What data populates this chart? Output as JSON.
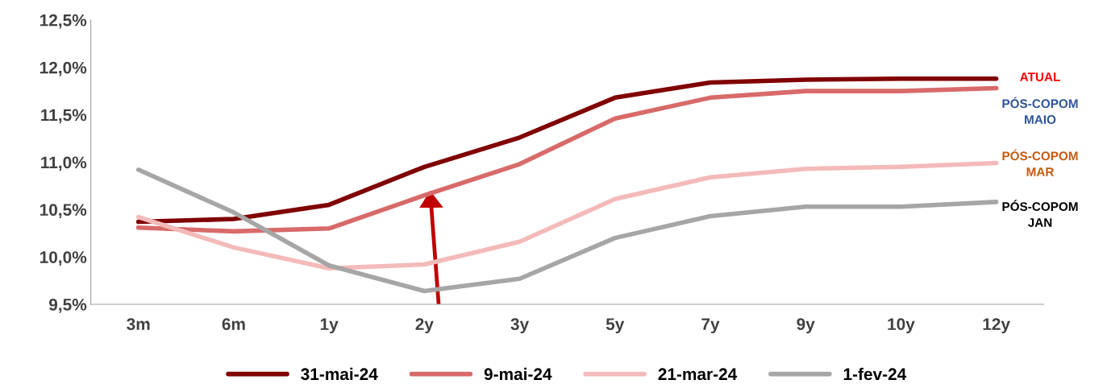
{
  "chart_data": {
    "type": "line",
    "categories": [
      "3m",
      "6m",
      "1y",
      "2y",
      "3y",
      "5y",
      "7y",
      "9y",
      "10y",
      "12y"
    ],
    "series": [
      {
        "name": "31-mai-24",
        "color": "#800000",
        "values": [
          10.37,
          10.4,
          10.55,
          10.95,
          11.26,
          11.68,
          11.84,
          11.87,
          11.88,
          11.88
        ]
      },
      {
        "name": "9-mai-24",
        "color": "#d86a6a",
        "values": [
          10.31,
          10.27,
          10.3,
          10.65,
          10.98,
          11.46,
          11.68,
          11.75,
          11.75,
          11.78
        ]
      },
      {
        "name": "21-mar-24",
        "color": "#f4baba",
        "values": [
          10.42,
          10.1,
          9.88,
          9.92,
          10.16,
          10.61,
          10.84,
          10.93,
          10.95,
          10.99
        ]
      },
      {
        "name": "1-fev-24",
        "color": "#a6a6a6",
        "values": [
          10.92,
          10.47,
          9.91,
          9.64,
          9.77,
          10.2,
          10.43,
          10.53,
          10.53,
          10.58
        ]
      }
    ],
    "ylim": [
      9.5,
      12.5
    ],
    "yticks": [
      {
        "value": 9.5,
        "label": "9,5%"
      },
      {
        "value": 10.0,
        "label": "10,0%"
      },
      {
        "value": 10.5,
        "label": "10,5%"
      },
      {
        "value": 11.0,
        "label": "11,0%"
      },
      {
        "value": 11.5,
        "label": "11,5%"
      },
      {
        "value": 12.0,
        "label": "12,0%"
      },
      {
        "value": 12.5,
        "label": "12,5%"
      }
    ],
    "annotations": [
      "ATUAL",
      "PÓS-COPOM\nMAIO",
      "PÓS-COPOM\nMAR",
      "PÓS-COPOM\nJAN"
    ],
    "grid": false,
    "legend": "bottom",
    "marker": "none",
    "line_style": "solid"
  }
}
